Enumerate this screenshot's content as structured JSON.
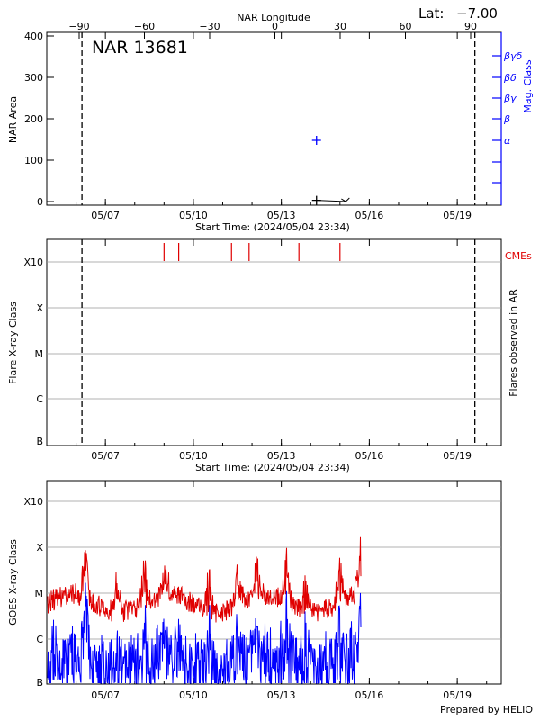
{
  "lat_label": "Lat:",
  "lat_value": "−7.00",
  "footer": "Prepared by HELIO",
  "colors": {
    "red": "#e00000",
    "blue": "#0000ff",
    "grid": "#999999"
  },
  "chart_data": [
    {
      "type": "scatter",
      "title": "NAR 13681",
      "xlabel": "Start Time: (2024/05/04 23:34)",
      "ylabel": "NAR Area",
      "top_axis_label": "NAR Longitude",
      "top_ticks": [
        "−90",
        "−60",
        "−30",
        "0",
        "30",
        "60",
        "90"
      ],
      "right_axis_label": "Mag. Class",
      "mag_classes": [
        "α",
        "β",
        "βγ",
        "βδ",
        "βγδ"
      ],
      "x_ticks": [
        "05/07",
        "05/10",
        "05/13",
        "05/16",
        "05/19"
      ],
      "y_ticks": [
        "0",
        "100",
        "200",
        "300",
        "400"
      ],
      "ylim": [
        0,
        400
      ],
      "xlim_days": [
        0,
        15.5
      ],
      "points": [
        {
          "day": 9.2,
          "area": 3,
          "marker": "plus"
        },
        {
          "day": 10.2,
          "area": 0,
          "marker": "arrow"
        }
      ],
      "mag_points": [
        {
          "day": 9.2,
          "class": "α"
        }
      ],
      "vlines_days": [
        1.2,
        14.6
      ]
    },
    {
      "type": "scatter",
      "xlabel": "Start Time: (2024/05/04 23:34)",
      "ylabel": "Flare X-ray Class",
      "right_axis_label": "Flares observed in AR",
      "y_ticks": [
        "B",
        "C",
        "M",
        "X",
        "X10"
      ],
      "cme_label": "CMEs",
      "x_ticks": [
        "05/07",
        "05/10",
        "05/13",
        "05/16",
        "05/19"
      ],
      "cme_days": [
        4.0,
        4.5,
        6.3,
        6.9,
        8.6,
        10.0
      ],
      "vlines_days": [
        1.2,
        14.6
      ]
    },
    {
      "type": "line",
      "ylabel": "GOES X-ray Class",
      "y_ticks": [
        "B",
        "C",
        "M",
        "X",
        "X10"
      ],
      "x_ticks": [
        "05/07",
        "05/10",
        "05/13",
        "05/16",
        "05/19"
      ],
      "series": [
        {
          "color": "#e00000"
        },
        {
          "color": "#0000ff"
        }
      ]
    }
  ]
}
